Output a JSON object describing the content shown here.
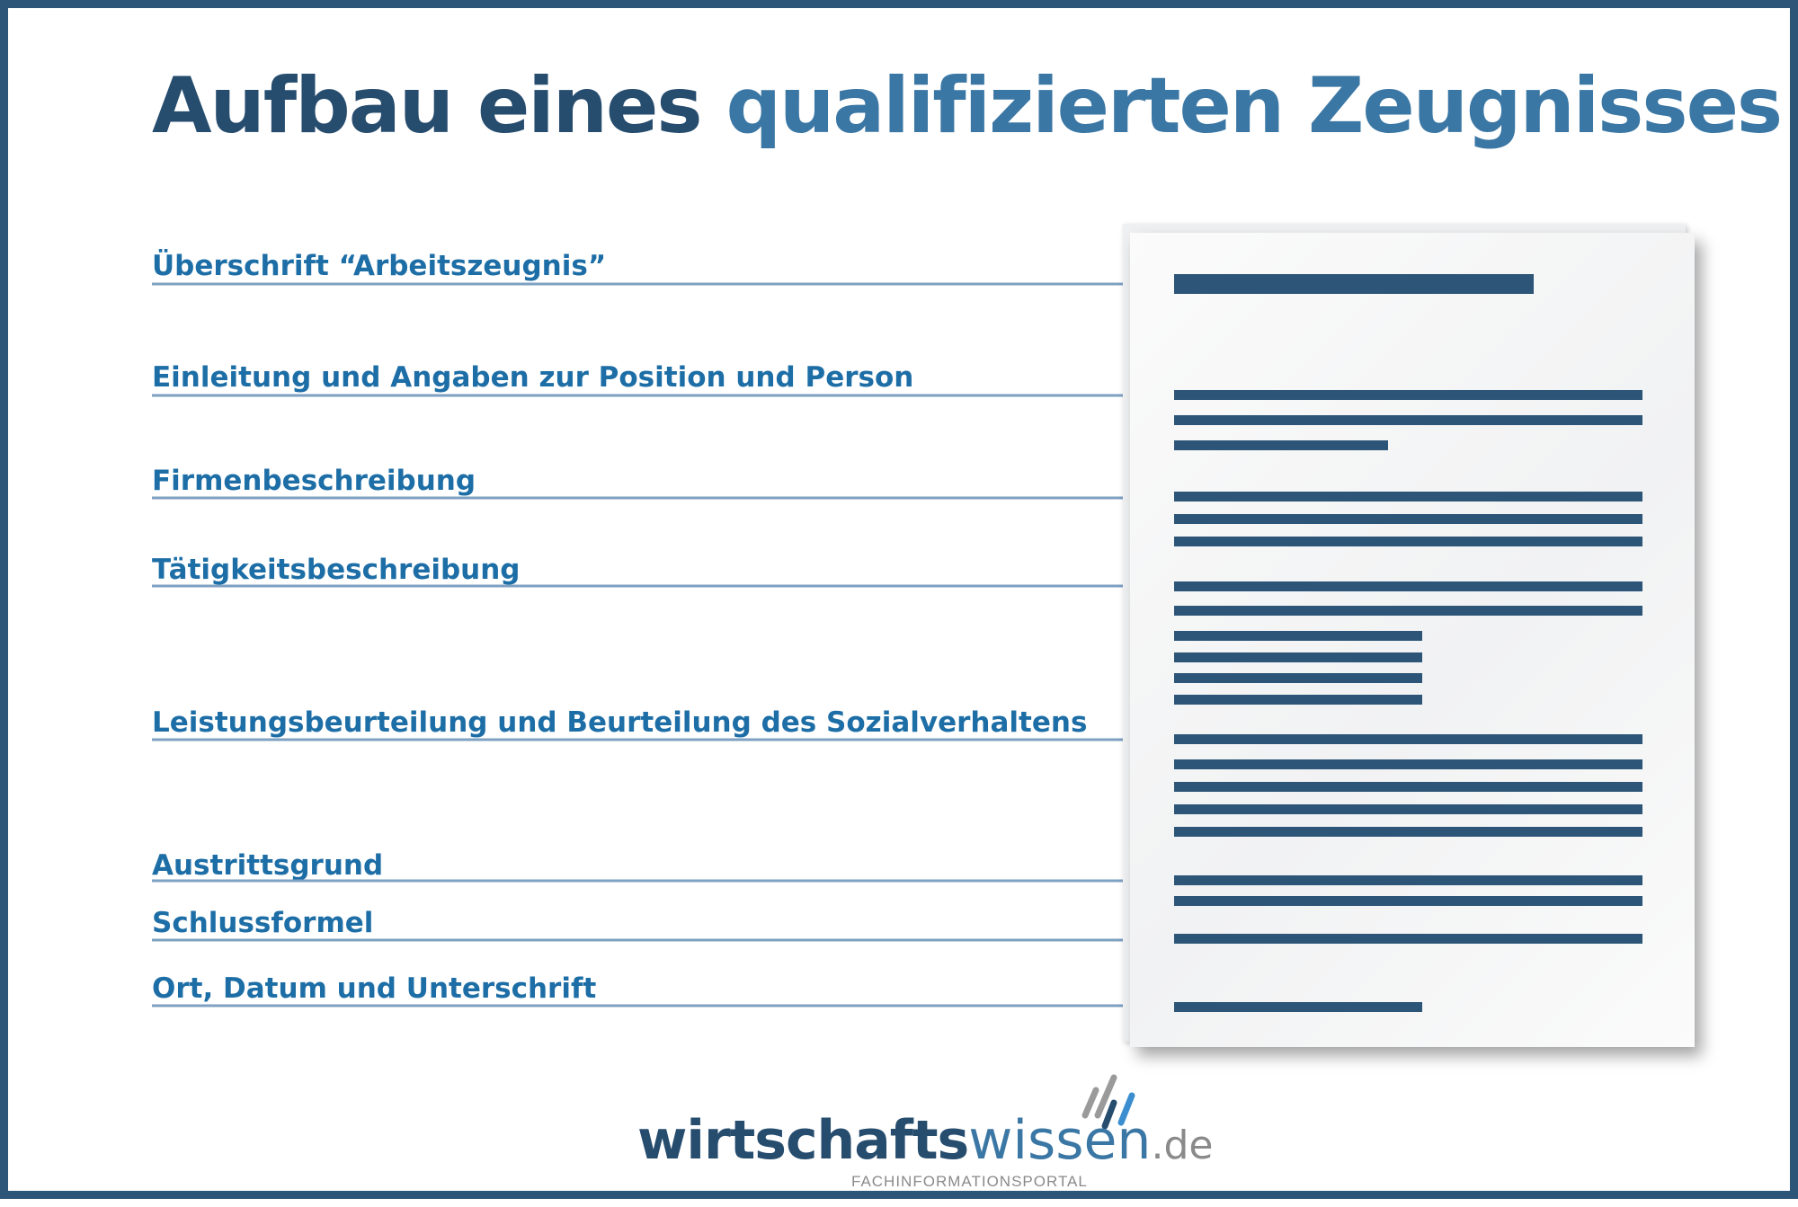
{
  "title": {
    "part1": "Aufbau eines",
    "part2": "qualifizierten Zeugnisses",
    "color_dark": "#264c6e",
    "color_light": "#3b77a4"
  },
  "sections": [
    {
      "label": "Überschrift “Arbeitszeugnis”"
    },
    {
      "label": "Einleitung und Angaben zur Position und Person"
    },
    {
      "label": "Firmenbeschreibung"
    },
    {
      "label": "Tätigkeitsbeschreibung"
    },
    {
      "label": "Leistungsbeurteilung und Beurteilung des Sozialverhaltens"
    },
    {
      "label": "Austrittsgrund"
    },
    {
      "label": "Schlussformel"
    },
    {
      "label": "Ort, Datum und Unterschrift"
    }
  ],
  "colors": {
    "label": "#1d6ea6",
    "arrow": "#7ea0c2",
    "bar": "#2c5577",
    "border": "#2c5577"
  },
  "logo": {
    "part1": "wirtschafts",
    "part2": "wissen",
    "part3": ".de",
    "tagline": "FACHINFORMATIONSPORTAL"
  }
}
